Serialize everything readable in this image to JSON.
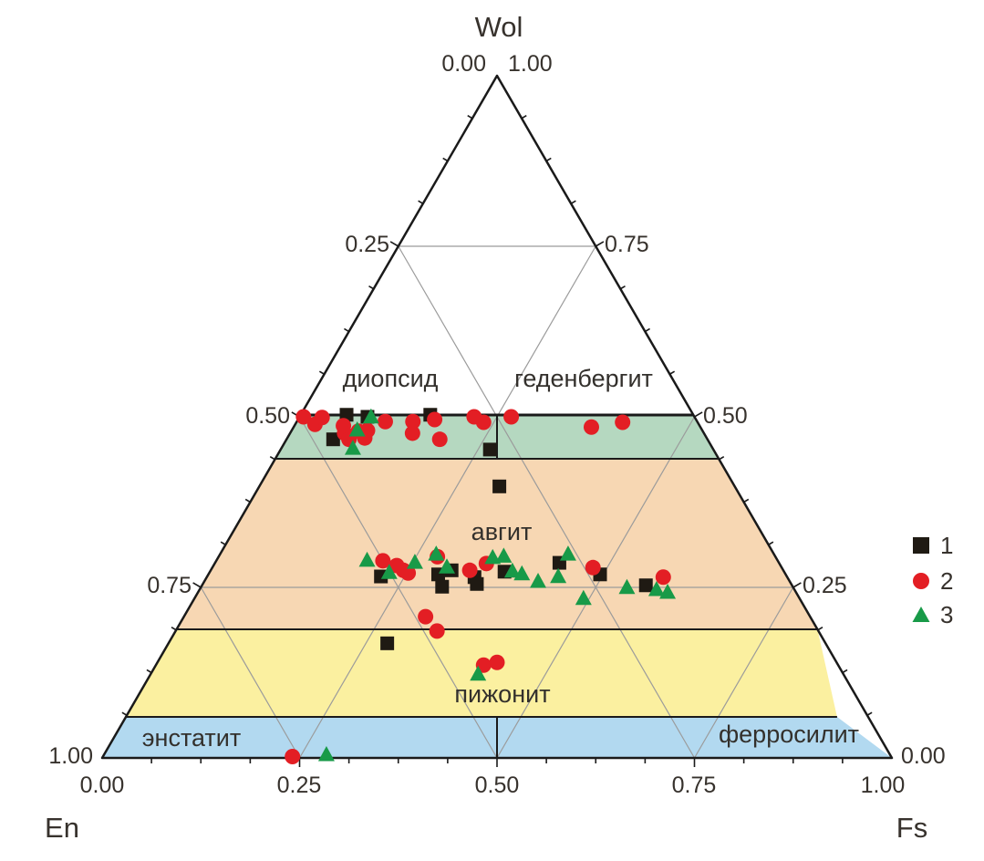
{
  "title": "Wol",
  "corner_labels": {
    "bottom_left": "En",
    "bottom_right": "Fs"
  },
  "apex_tick_labels": {
    "left": "0.00",
    "right": "1.00"
  },
  "axis_ticks": {
    "bottom": [
      "0.00",
      "0.25",
      "0.50",
      "0.75",
      "1.00"
    ],
    "left": [
      "0.25",
      "0.50",
      "0.75",
      "1.00"
    ],
    "right": [
      "0.75",
      "0.50",
      "0.25",
      "0.00"
    ]
  },
  "fields": [
    {
      "label": "диопсид"
    },
    {
      "label": "геденбергит"
    },
    {
      "label": "авгит"
    },
    {
      "label": "пижонит"
    },
    {
      "label": "энстатит"
    },
    {
      "label": "ферросилит"
    }
  ],
  "legend": {
    "items": [
      {
        "label": "1",
        "symbol": "square"
      },
      {
        "label": "2",
        "symbol": "circle"
      },
      {
        "label": "3",
        "symbol": "triangle"
      }
    ]
  },
  "colors": {
    "band_diopside_hedenbergite": "#b5d8c0",
    "band_augite": "#f7d7b3",
    "band_pigeonite": "#fbf0a0",
    "band_enstatite_ferrosilite": "#b2d9f0",
    "series_1": "#1f1a13",
    "series_2": "#e31e24",
    "series_3": "#189a48",
    "grid": "#9b9b9b",
    "outline": "#1a1a1a"
  },
  "chart_data": {
    "type": "scatter",
    "subtype": "ternary",
    "axes": {
      "top": "Wol",
      "bottom_left": "En",
      "bottom_right": "Fs",
      "range": [
        0,
        1
      ],
      "major_tick_step": 0.25,
      "minor_tick_step": 0.0625
    },
    "point_format": "[Wo, Fs] molar fractions; En = 1 - Wo - Fs",
    "regions": [
      {
        "label": "диопсид / геденбергит",
        "wo_range": [
          0.45,
          0.5
        ],
        "color_key": "band_diopside_hedenbergite"
      },
      {
        "label": "авгит",
        "wo_range": [
          0.2,
          0.45
        ],
        "color_key": "band_augite"
      },
      {
        "label": "пижонит",
        "wo_range": [
          0.05,
          0.2
        ],
        "color_key": "band_pigeonite"
      },
      {
        "label": "энстатит / ферросилит",
        "wo_range": [
          0.0,
          0.05
        ],
        "color_key": "band_enstatite_ferrosilite"
      }
    ],
    "series": [
      {
        "name": "1",
        "symbol": "square",
        "points": [
          [
            0.503,
            0.058
          ],
          [
            0.5,
            0.086
          ],
          [
            0.467,
            0.059
          ],
          [
            0.503,
            0.164
          ],
          [
            0.452,
            0.265
          ],
          [
            0.398,
            0.304
          ],
          [
            0.266,
            0.22
          ],
          [
            0.269,
            0.291
          ],
          [
            0.251,
            0.305
          ],
          [
            0.275,
            0.305
          ],
          [
            0.265,
            0.339
          ],
          [
            0.255,
            0.347
          ],
          [
            0.273,
            0.373
          ],
          [
            0.286,
            0.436
          ],
          [
            0.269,
            0.496
          ],
          [
            0.253,
            0.562
          ],
          [
            0.168,
            0.277
          ]
        ]
      },
      {
        "name": "2",
        "symbol": "circle",
        "points": [
          [
            0.5,
            0.005
          ],
          [
            0.489,
            0.025
          ],
          [
            0.499,
            0.029
          ],
          [
            0.487,
            0.062
          ],
          [
            0.476,
            0.069
          ],
          [
            0.467,
            0.079
          ],
          [
            0.479,
            0.085
          ],
          [
            0.469,
            0.098
          ],
          [
            0.48,
            0.096
          ],
          [
            0.493,
            0.112
          ],
          [
            0.493,
            0.147
          ],
          [
            0.476,
            0.155
          ],
          [
            0.496,
            0.173
          ],
          [
            0.467,
            0.194
          ],
          [
            0.5,
            0.221
          ],
          [
            0.492,
            0.237
          ],
          [
            0.5,
            0.268
          ],
          [
            0.485,
            0.377
          ],
          [
            0.492,
            0.413
          ],
          [
            0.289,
            0.211
          ],
          [
            0.282,
            0.232
          ],
          [
            0.275,
            0.244
          ],
          [
            0.271,
            0.252
          ],
          [
            0.295,
            0.277
          ],
          [
            0.275,
            0.328
          ],
          [
            0.285,
            0.344
          ],
          [
            0.279,
            0.482
          ],
          [
            0.265,
            0.578
          ],
          [
            0.207,
            0.306
          ],
          [
            0.186,
            0.331
          ],
          [
            0.136,
            0.415
          ],
          [
            0.14,
            0.43
          ],
          [
            0.002,
            0.24
          ]
        ]
      },
      {
        "name": "3",
        "symbol": "triangle",
        "points": [
          [
            0.499,
            0.091
          ],
          [
            0.48,
            0.083
          ],
          [
            0.453,
            0.091
          ],
          [
            0.289,
            0.191
          ],
          [
            0.271,
            0.228
          ],
          [
            0.286,
            0.253
          ],
          [
            0.298,
            0.274
          ],
          [
            0.279,
            0.297
          ],
          [
            0.293,
            0.348
          ],
          [
            0.295,
            0.361
          ],
          [
            0.273,
            0.383
          ],
          [
            0.269,
            0.397
          ],
          [
            0.258,
            0.423
          ],
          [
            0.298,
            0.441
          ],
          [
            0.265,
            0.445
          ],
          [
            0.233,
            0.493
          ],
          [
            0.249,
            0.54
          ],
          [
            0.246,
            0.579
          ],
          [
            0.242,
            0.595
          ],
          [
            0.122,
            0.415
          ],
          [
            0.004,
            0.282
          ]
        ]
      }
    ]
  }
}
